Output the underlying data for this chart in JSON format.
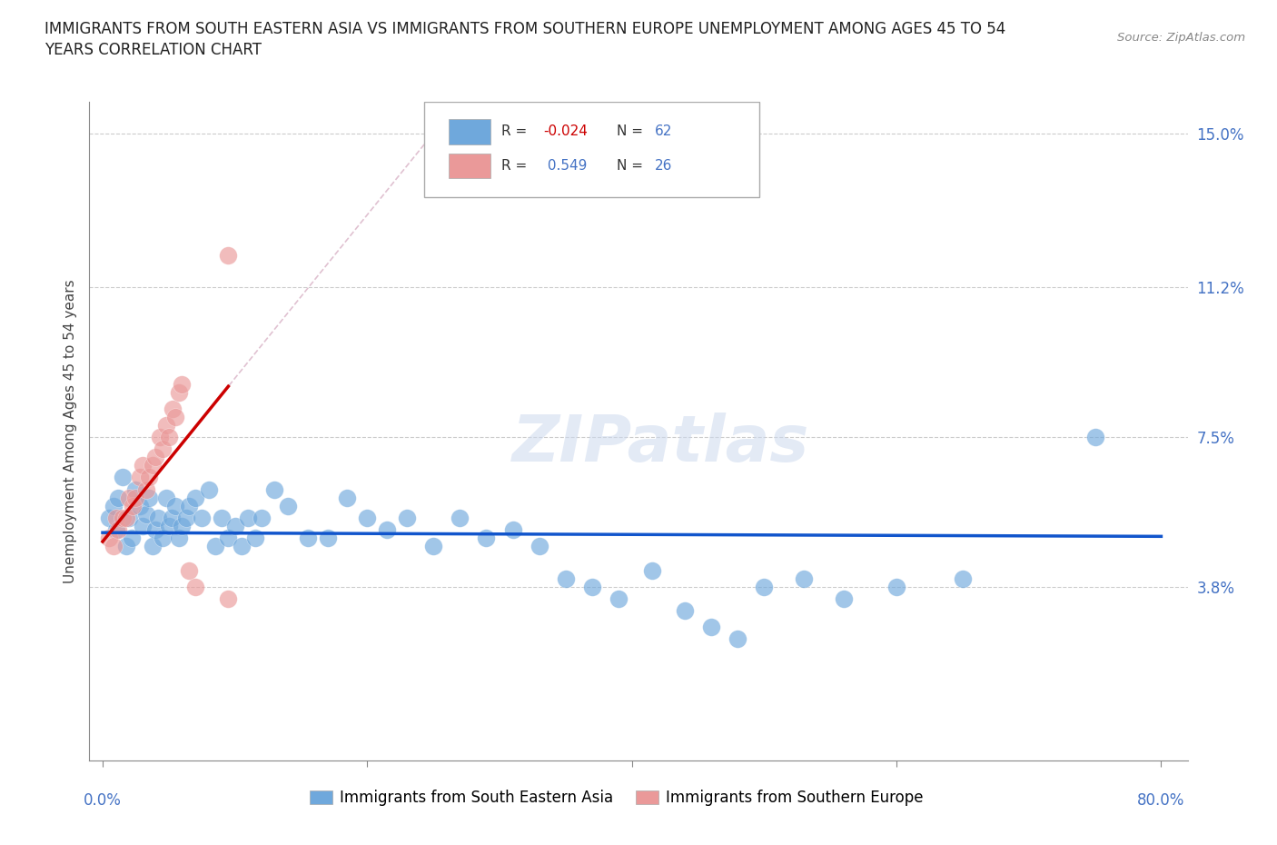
{
  "title_line1": "IMMIGRANTS FROM SOUTH EASTERN ASIA VS IMMIGRANTS FROM SOUTHERN EUROPE UNEMPLOYMENT AMONG AGES 45 TO 54",
  "title_line2": "YEARS CORRELATION CHART",
  "source": "Source: ZipAtlas.com",
  "ylabel": "Unemployment Among Ages 45 to 54 years",
  "legend1_label": "Immigrants from South Eastern Asia",
  "legend2_label": "Immigrants from Southern Europe",
  "R1": -0.024,
  "N1": 62,
  "R2": 0.549,
  "N2": 26,
  "color_sea": "#6fa8dc",
  "color_se": "#ea9999",
  "trendline1_color": "#1155cc",
  "trendline2_color": "#cc0000",
  "trendline2_dash_color": "#ddbbbb",
  "watermark": "ZIPatlas",
  "xlim": [
    0.0,
    0.8
  ],
  "ylim": [
    0.0,
    0.155
  ],
  "ytick_vals": [
    0.0,
    0.038,
    0.075,
    0.112,
    0.15
  ],
  "ytick_labels": [
    "",
    "3.8%",
    "7.5%",
    "11.2%",
    "15.0%"
  ],
  "sea_x": [
    0.005,
    0.008,
    0.01,
    0.012,
    0.015,
    0.018,
    0.02,
    0.022,
    0.025,
    0.028,
    0.03,
    0.033,
    0.035,
    0.038,
    0.04,
    0.042,
    0.045,
    0.048,
    0.05,
    0.052,
    0.055,
    0.058,
    0.06,
    0.063,
    0.065,
    0.07,
    0.075,
    0.08,
    0.085,
    0.09,
    0.095,
    0.1,
    0.105,
    0.11,
    0.115,
    0.12,
    0.13,
    0.14,
    0.155,
    0.17,
    0.185,
    0.2,
    0.215,
    0.23,
    0.25,
    0.27,
    0.29,
    0.31,
    0.33,
    0.35,
    0.37,
    0.39,
    0.415,
    0.44,
    0.46,
    0.48,
    0.5,
    0.53,
    0.56,
    0.6,
    0.65,
    0.75
  ],
  "sea_y": [
    0.055,
    0.058,
    0.052,
    0.06,
    0.065,
    0.048,
    0.055,
    0.05,
    0.062,
    0.058,
    0.053,
    0.056,
    0.06,
    0.048,
    0.052,
    0.055,
    0.05,
    0.06,
    0.053,
    0.055,
    0.058,
    0.05,
    0.053,
    0.055,
    0.058,
    0.06,
    0.055,
    0.062,
    0.048,
    0.055,
    0.05,
    0.053,
    0.048,
    0.055,
    0.05,
    0.055,
    0.062,
    0.058,
    0.05,
    0.05,
    0.06,
    0.055,
    0.052,
    0.055,
    0.048,
    0.055,
    0.05,
    0.052,
    0.048,
    0.04,
    0.038,
    0.035,
    0.042,
    0.032,
    0.028,
    0.025,
    0.038,
    0.04,
    0.035,
    0.038,
    0.04,
    0.075
  ],
  "se_x": [
    0.005,
    0.008,
    0.01,
    0.012,
    0.015,
    0.018,
    0.02,
    0.023,
    0.025,
    0.028,
    0.03,
    0.033,
    0.035,
    0.038,
    0.04,
    0.043,
    0.045,
    0.048,
    0.05,
    0.053,
    0.055,
    0.058,
    0.06,
    0.065,
    0.07,
    0.095
  ],
  "se_y": [
    0.05,
    0.048,
    0.055,
    0.052,
    0.055,
    0.055,
    0.06,
    0.058,
    0.06,
    0.065,
    0.068,
    0.062,
    0.065,
    0.068,
    0.07,
    0.075,
    0.072,
    0.078,
    0.075,
    0.082,
    0.08,
    0.086,
    0.088,
    0.042,
    0.038,
    0.035
  ],
  "se_outlier_x": [
    0.095
  ],
  "se_outlier_y": [
    0.12
  ]
}
